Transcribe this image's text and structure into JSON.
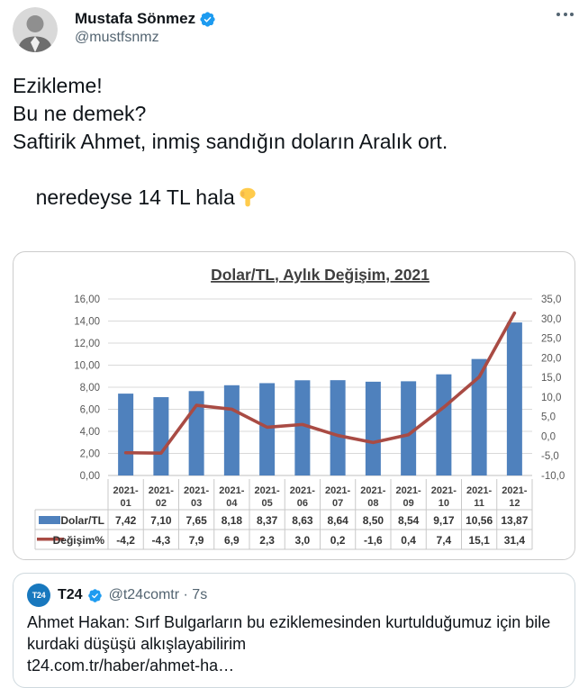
{
  "colors": {
    "accent": "#1d9bf0",
    "text": "#0f1419",
    "muted": "#536471",
    "border": "#cfd9de",
    "chart-border": "#cccccc",
    "t24": "#1878be",
    "emoji": "#ffcb4c"
  },
  "tweet": {
    "author": {
      "name": "Mustafa Sönmez",
      "handle": "@mustfsnmz",
      "verified": true
    },
    "text_lines": [
      "Ezikleme!",
      "Bu ne demek?",
      "Saftirik Ahmet, inmiş sandığın doların Aralık ort.",
      "neredeyse 14 TL hala"
    ],
    "emoji": "pointing-down"
  },
  "chart_data": {
    "type": "bar",
    "title": "Dolar/TL, Aylık Değişim, 2021",
    "categories": [
      "2021-01",
      "2021-02",
      "2021-03",
      "2021-04",
      "2021-05",
      "2021-06",
      "2021-07",
      "2021-08",
      "2021-09",
      "2021-10",
      "2021-11",
      "2021-12"
    ],
    "series": [
      {
        "name": "Dolar/TL",
        "type": "bar",
        "axis": "left",
        "color": "#4f81bd",
        "values": [
          7.42,
          7.1,
          7.65,
          8.18,
          8.37,
          8.63,
          8.64,
          8.5,
          8.54,
          9.17,
          10.56,
          13.87
        ],
        "values_display": [
          "7,42",
          "7,10",
          "7,65",
          "8,18",
          "8,37",
          "8,63",
          "8,64",
          "8,50",
          "8,54",
          "9,17",
          "10,56",
          "13,87"
        ]
      },
      {
        "name": "Değişim%",
        "type": "line",
        "axis": "right",
        "color": "#a94b44",
        "values": [
          -4.2,
          -4.3,
          7.9,
          6.9,
          2.3,
          3.0,
          0.2,
          -1.6,
          0.4,
          7.4,
          15.1,
          31.4
        ],
        "values_display": [
          "-4,2",
          "-4,3",
          "7,9",
          "6,9",
          "2,3",
          "3,0",
          "0,2",
          "-1,6",
          "0,4",
          "7,4",
          "15,1",
          "31,4"
        ]
      }
    ],
    "left_axis": {
      "min": 0,
      "max": 16,
      "step": 2,
      "decimals": 2
    },
    "right_axis": {
      "min": -10,
      "max": 35,
      "step": 5,
      "decimals": 1
    },
    "grid": true,
    "legend_position": "table-left"
  },
  "quote": {
    "author": {
      "name": "T24",
      "handle": "@t24comtr",
      "verified": true,
      "avatar_text": "T24"
    },
    "separator": "·",
    "time": "7s",
    "text": "Ahmet Hakan: Sırf Bulgarların bu eziklemesinden kurtulduğumuz için bile kurdaki düşüşü alkışlayabilirim",
    "link": "t24.com.tr/haber/ahmet-ha…"
  }
}
